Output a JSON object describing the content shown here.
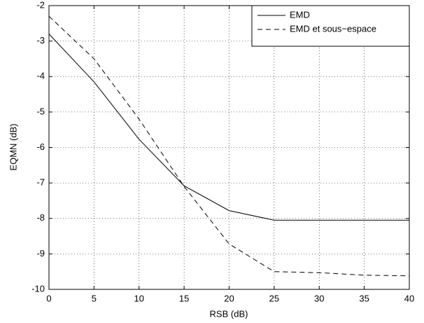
{
  "chart_data": {
    "type": "line",
    "x_label": "RSB (dB)",
    "y_label": "EQMN (dB)",
    "x": [
      0,
      5,
      10,
      15,
      20,
      25,
      30,
      35,
      40
    ],
    "series": [
      {
        "name": "EMD",
        "color": "#000000",
        "linestyle": "solid",
        "values": [
          -2.8,
          -4.15,
          -5.77,
          -7.08,
          -7.78,
          -8.05,
          -8.05,
          -8.05,
          -8.05
        ]
      },
      {
        "name": "EMD et sous−espace",
        "color": "#000000",
        "linestyle": "dashed",
        "values": [
          -2.3,
          -3.5,
          -5.2,
          -7.1,
          -8.72,
          -9.5,
          -9.53,
          -9.6,
          -9.62
        ]
      }
    ],
    "xlim": [
      0,
      40
    ],
    "xticks": [
      0,
      5,
      10,
      15,
      20,
      25,
      30,
      35,
      40
    ],
    "ylim": [
      -10,
      -2
    ],
    "yticks": [
      -10,
      -9,
      -8,
      -7,
      -6,
      -5,
      -4,
      -3,
      -2
    ],
    "grid": true,
    "legend": "top-right"
  }
}
